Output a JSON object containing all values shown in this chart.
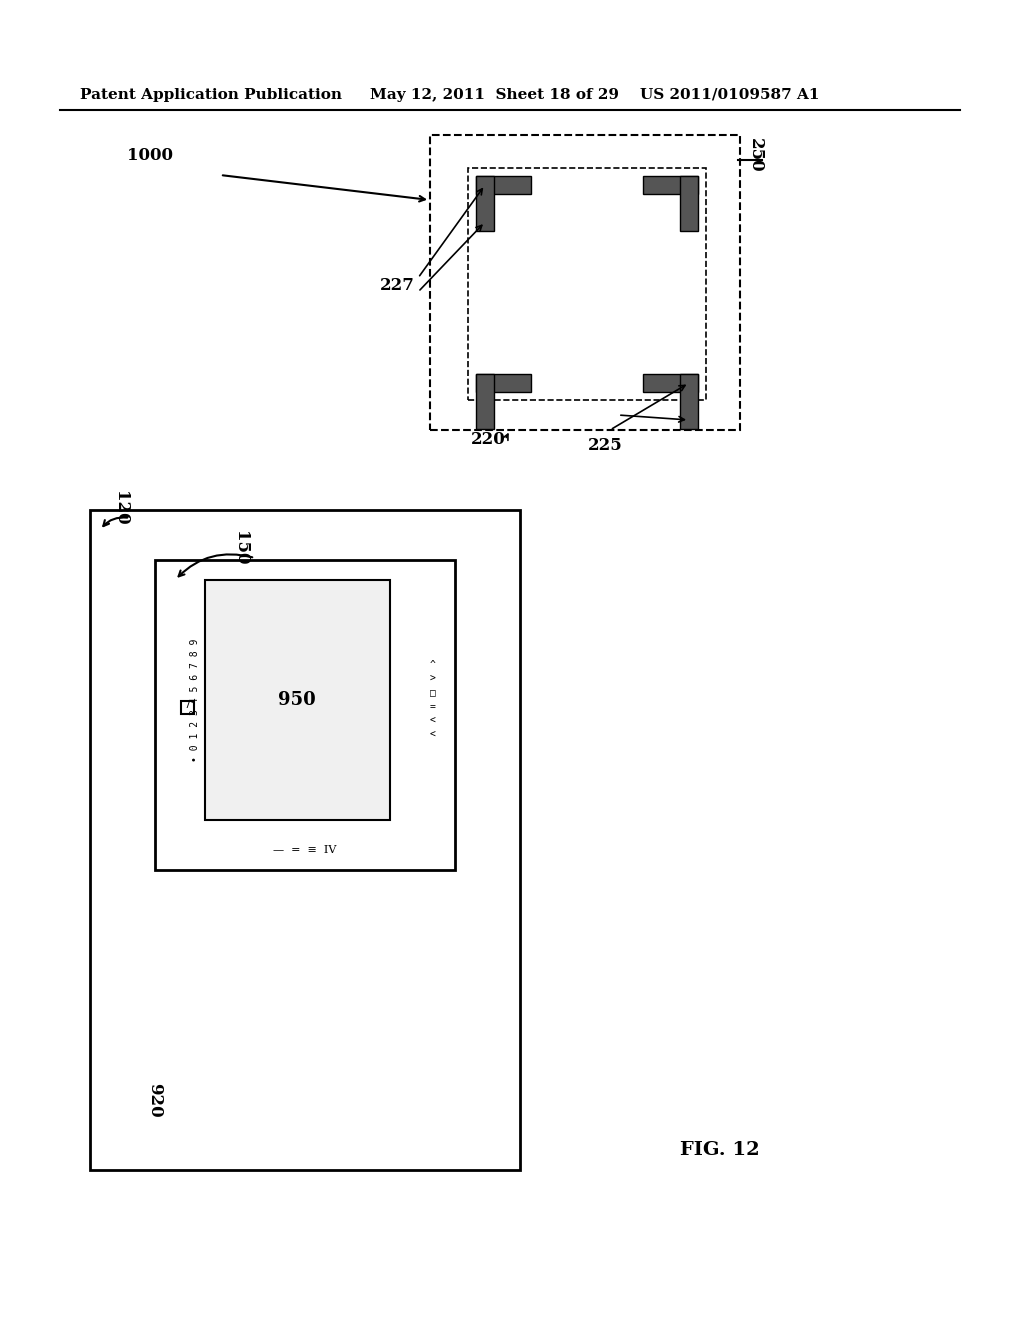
{
  "bg_color": "#ffffff",
  "header_text": "Patent Application Publication",
  "header_date": "May 12, 2011  Sheet 18 of 29",
  "header_patent": "US 2011/0109587 A1",
  "fig_label": "FIG. 12",
  "label_1000": "1000",
  "label_250": "250",
  "label_227": "227",
  "label_220": "220",
  "label_225": "225",
  "label_120": "120",
  "label_150": "150",
  "label_950": "950",
  "label_920": "920"
}
